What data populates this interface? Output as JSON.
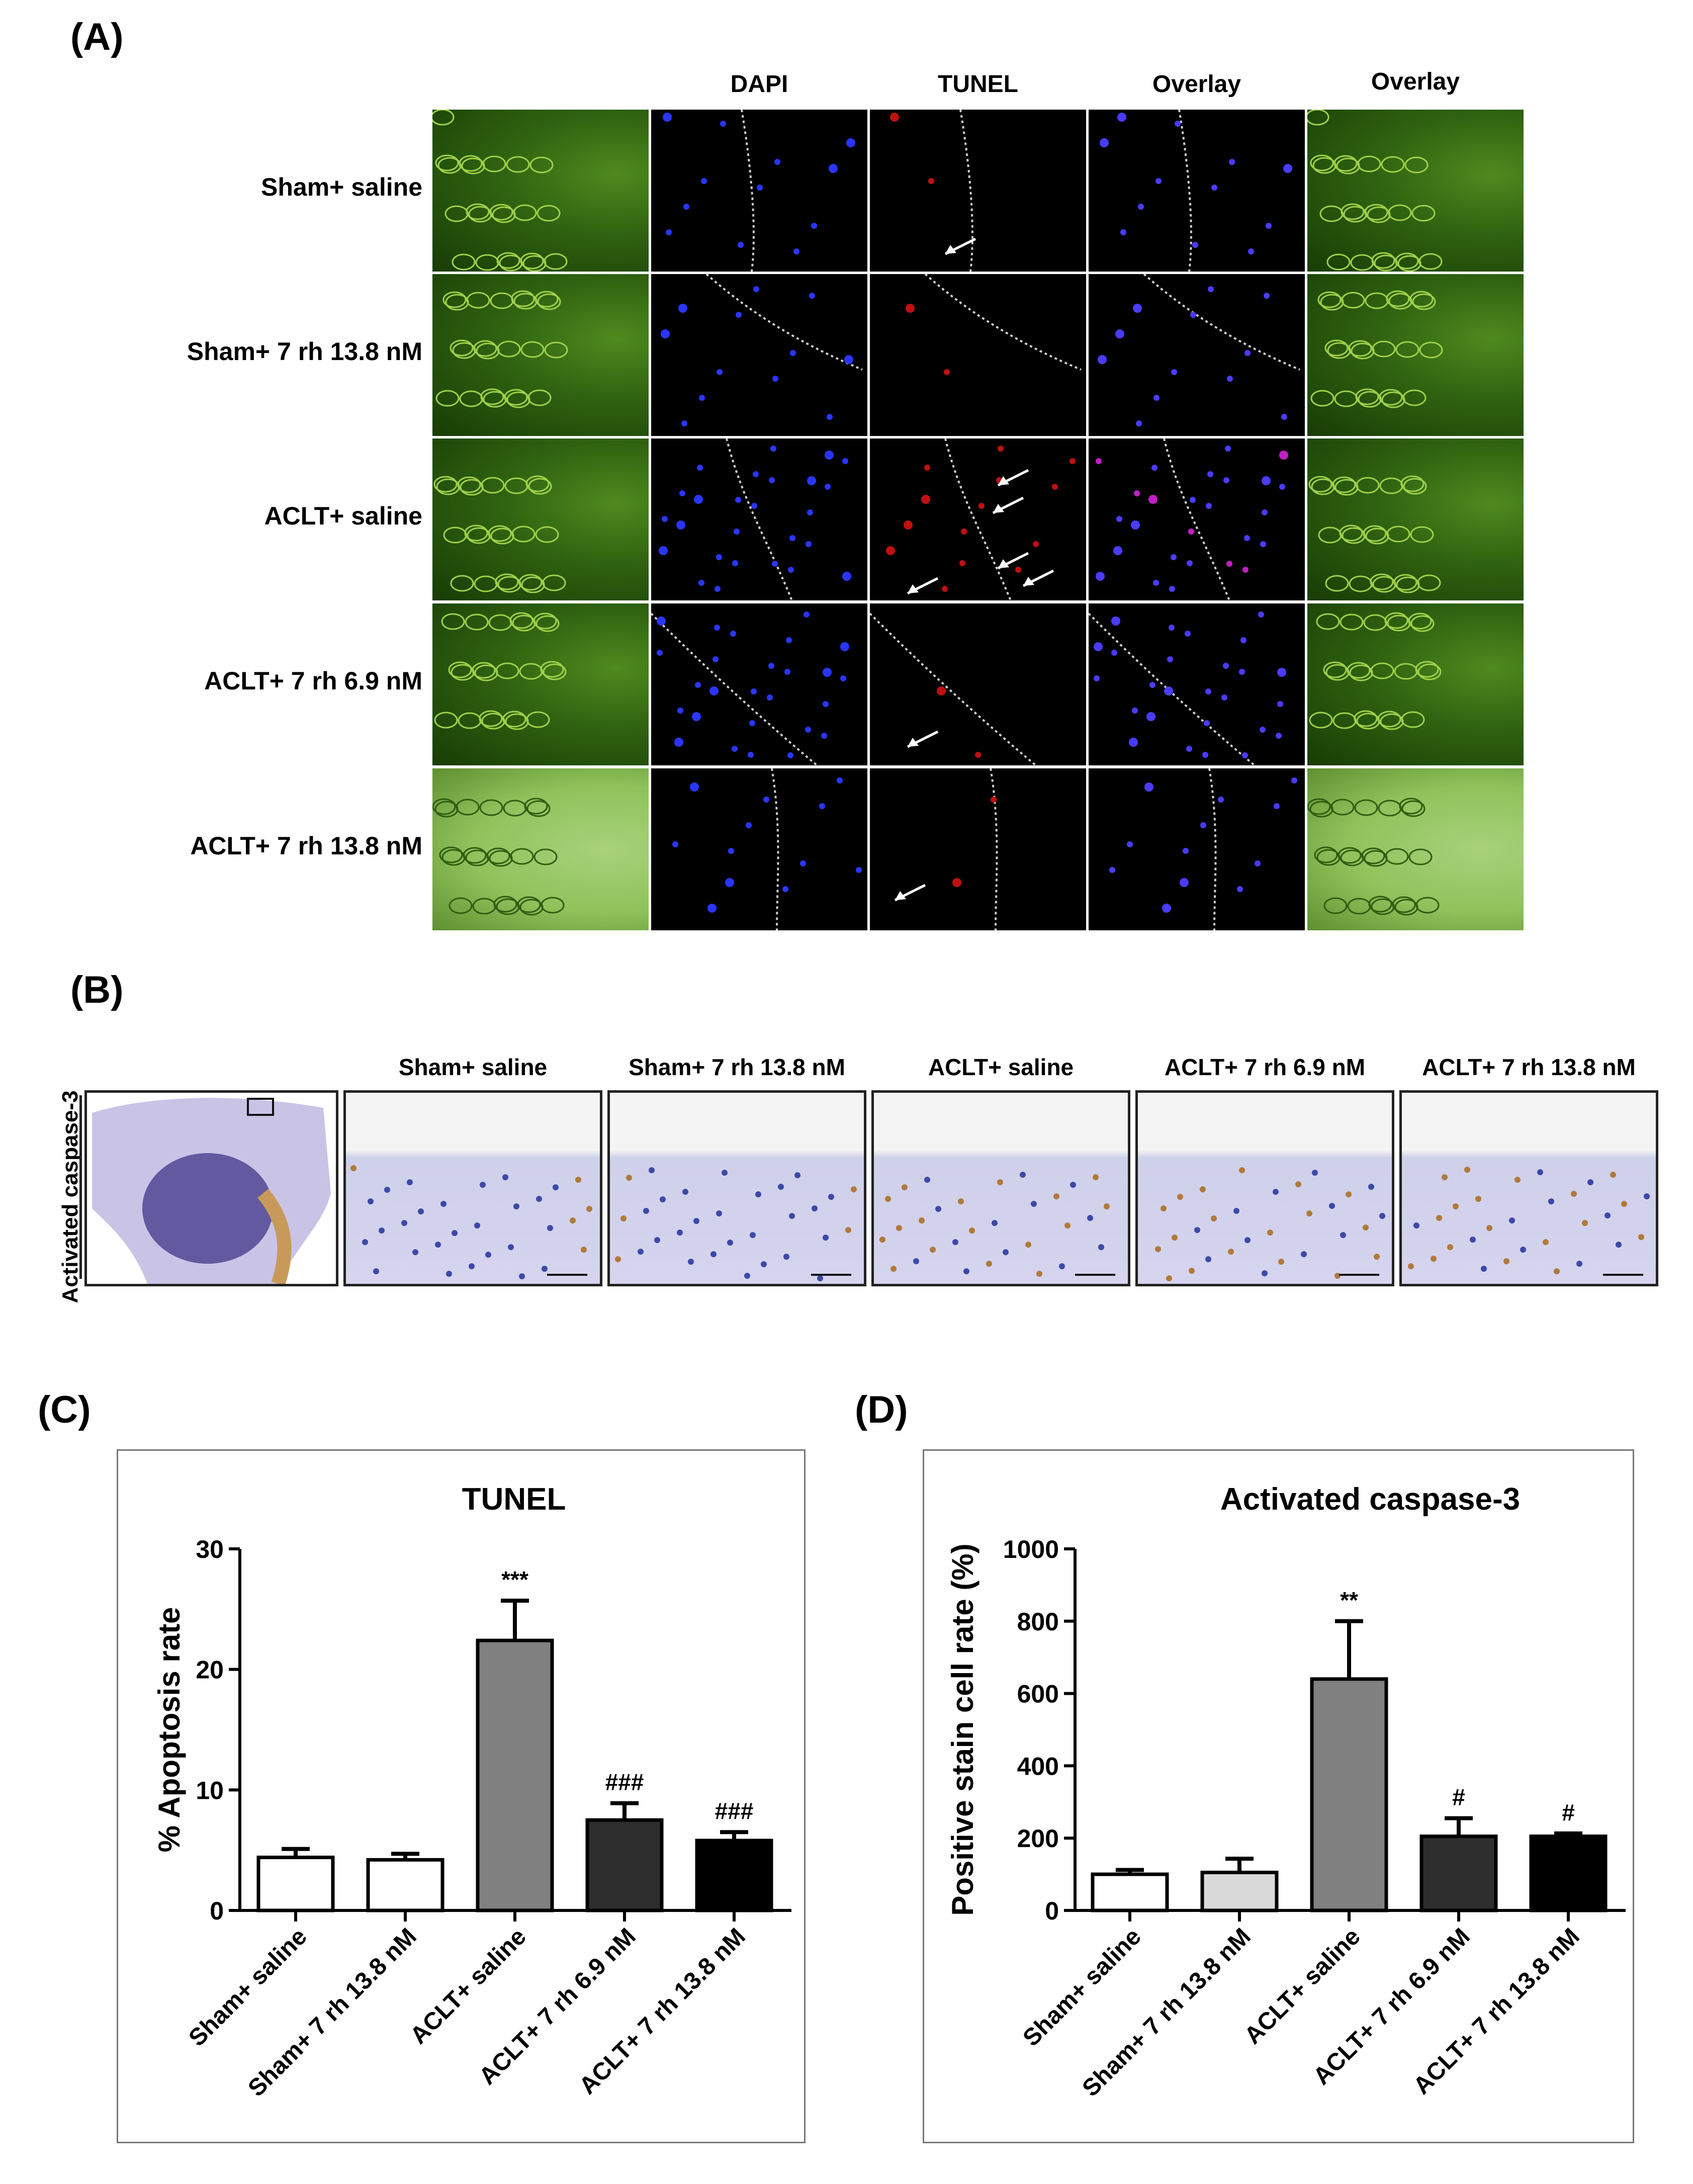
{
  "panelA": {
    "letter": "(A)",
    "columns": [
      "DAPI",
      "TUNEL",
      "Overlay",
      "Overlay"
    ],
    "rows": [
      "Sham+ saline",
      "Sham+ 7 rh 13.8 nM",
      "ACLT+ saline",
      "ACLT+ 7 rh 6.9 nM",
      "ACLT+ 7 rh 13.8 nM"
    ]
  },
  "panelB": {
    "letter": "(B)",
    "side_label": "Activated caspase-3",
    "columns": [
      "Sham+ saline",
      "Sham+ 7 rh 13.8 nM",
      "ACLT+ saline",
      "ACLT+ 7 rh 6.9 nM",
      "ACLT+ 7 rh 13.8 nM"
    ]
  },
  "panelC": {
    "letter": "(C)"
  },
  "panelD": {
    "letter": "(D)"
  },
  "chart_data": [
    {
      "type": "bar",
      "title": "TUNEL",
      "ylabel": "% Apoptosis rate",
      "ylim": [
        0,
        30
      ],
      "yticks": [
        0,
        10,
        20,
        30
      ],
      "categories": [
        "Sham+ saline",
        "Sham+ 7 rh 13.8 nM",
        "ACLT+ saline",
        "ACLT+ 7 rh 6.9 nM",
        "ACLT+ 7 rh 13.8 nM"
      ],
      "values": [
        4.4,
        4.2,
        22.4,
        7.5,
        5.8
      ],
      "errors": [
        0.7,
        0.5,
        3.3,
        1.4,
        0.7
      ],
      "annotations": [
        "",
        "",
        "***",
        "###",
        "###"
      ],
      "colors": [
        "#ffffff",
        "#ffffff",
        "#808080",
        "#2e2e2e",
        "#000000"
      ]
    },
    {
      "type": "bar",
      "title": "Activated caspase-3",
      "ylabel": "Positive stain cell rate (%)",
      "ylim": [
        0,
        1000
      ],
      "yticks": [
        0,
        200,
        400,
        600,
        800,
        1000
      ],
      "categories": [
        "Sham+ saline",
        "Sham+ 7 rh 13.8 nM",
        "ACLT+ saline",
        "ACLT+ 7 rh 6.9 nM",
        "ACLT+ 7 rh 13.8 nM"
      ],
      "values": [
        100,
        105,
        640,
        205,
        205
      ],
      "errors": [
        12,
        38,
        160,
        50,
        8
      ],
      "annotations": [
        "",
        "",
        "**",
        "#",
        "#"
      ],
      "colors": [
        "#ffffff",
        "#d9d9d9",
        "#808080",
        "#2e2e2e",
        "#000000"
      ]
    }
  ]
}
